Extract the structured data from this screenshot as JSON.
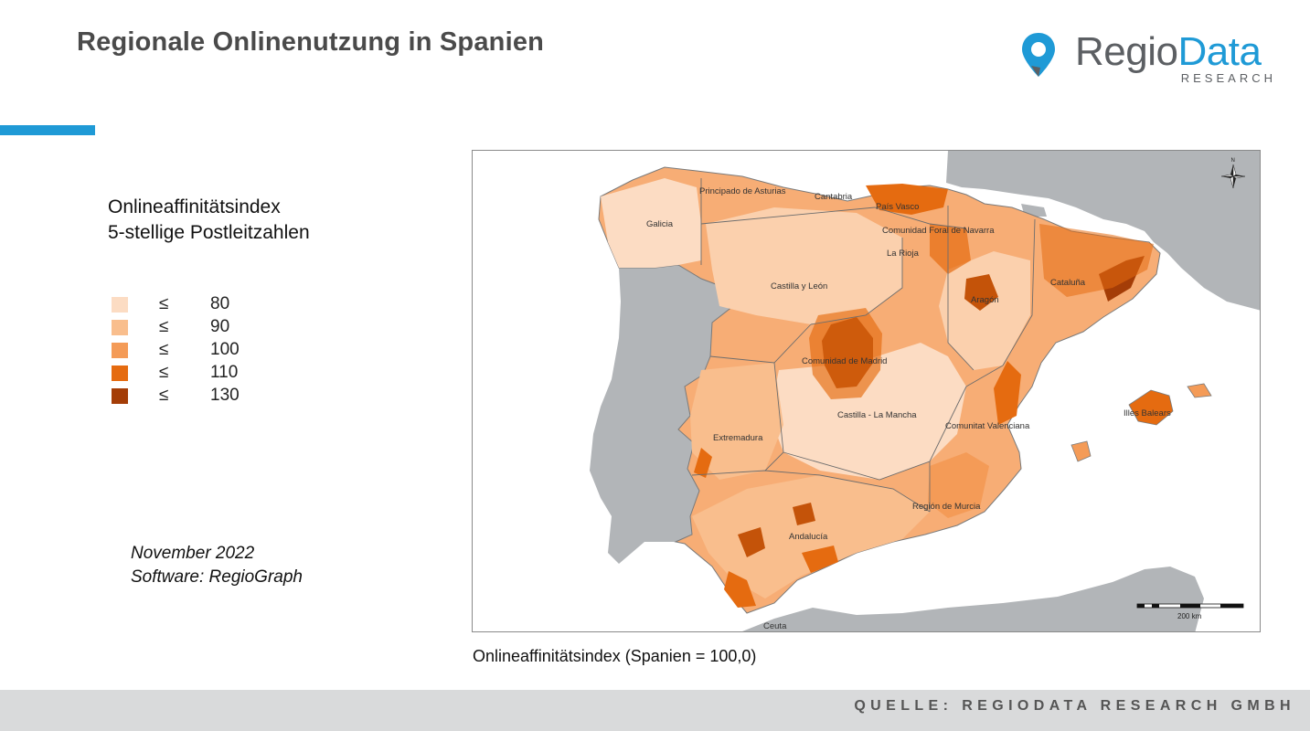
{
  "header": {
    "title": "Regionale Onlinenutzung in Spanien",
    "accent_color": "#1f9ad6"
  },
  "logo": {
    "icon": "location-pin-icon",
    "word_regio": "Regio",
    "word_data": "Data",
    "subline": "RESEARCH",
    "colors": {
      "regio": "#5c5f63",
      "data": "#1f9ad6"
    }
  },
  "legend": {
    "title_line1": "Onlineaffinitätsindex",
    "title_line2": "5-stellige Postleitzahlen",
    "classes": [
      {
        "symbol": "≤",
        "value": "80",
        "color": "#fcdcc3"
      },
      {
        "symbol": "≤",
        "value": "90",
        "color": "#f9be8d"
      },
      {
        "symbol": "≤",
        "value": "100",
        "color": "#f49b57"
      },
      {
        "symbol": "≤",
        "value": "110",
        "color": "#e56b10"
      },
      {
        "symbol": "≤",
        "value": "130",
        "color": "#a43d07"
      }
    ]
  },
  "meta": {
    "date": "November 2022",
    "software": "Software: RegioGraph"
  },
  "map": {
    "region_labels": [
      "Principado de Asturias",
      "Cantabria",
      "País Vasco",
      "Galicia",
      "Comunidad Foral de Navarra",
      "La Rioja",
      "Castilla y León",
      "Aragón",
      "Cataluña",
      "Comunidad de Madrid",
      "Castilla - La Mancha",
      "Comunitat Valenciana",
      "Illes Balears",
      "Extremadura",
      "Región de Murcia",
      "Andalucía",
      "Ceuta"
    ],
    "scale_label": "200 km",
    "north_arrow_label": "N",
    "colors": {
      "neighbor_land": "#b2b5b8",
      "sea": "#ffffff",
      "border": "#6d6d6d"
    }
  },
  "caption": "Onlineaffinitätsindex (Spanien = 100,0)",
  "footer": {
    "source": "QUELLE: REGIODATA RESEARCH GMBH"
  }
}
